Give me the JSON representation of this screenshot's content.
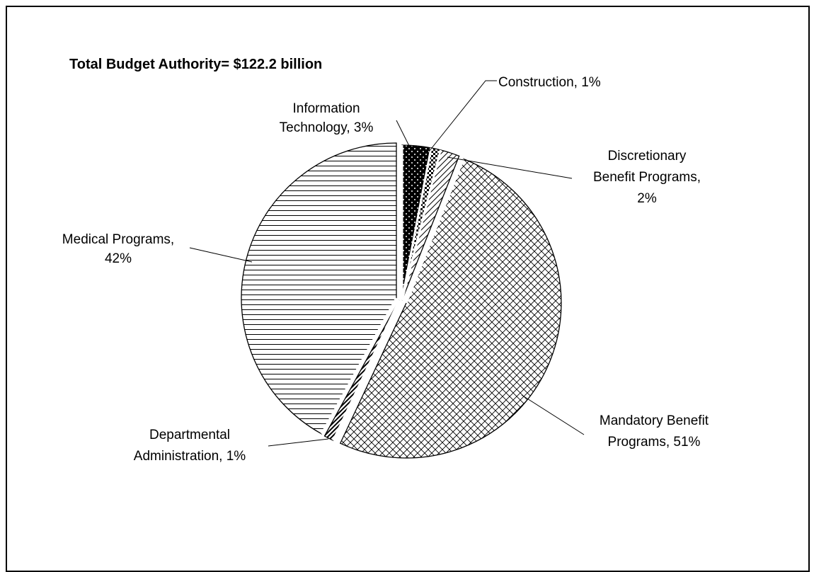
{
  "chart_data": {
    "type": "pie",
    "title": "Total Budget Authority= $122.2 billion",
    "slices": [
      {
        "name": "Information Technology",
        "value": 3,
        "label_lines": [
          "Information",
          "Technology, 3%"
        ],
        "pattern": "solid-dots"
      },
      {
        "name": "Construction",
        "value": 1,
        "label_lines": [
          "Construction, 1%"
        ],
        "pattern": "checker"
      },
      {
        "name": "Discretionary Benefit Programs",
        "value": 2,
        "label_lines": [
          "Discretionary",
          "Benefit Programs,",
          "2%"
        ],
        "pattern": "diag-hatch"
      },
      {
        "name": "Mandatory Benefit Programs",
        "value": 51,
        "label_lines": [
          "Mandatory Benefit",
          "Programs, 51%"
        ],
        "pattern": "crosshatch"
      },
      {
        "name": "Departmental Administration",
        "value": 1,
        "label_lines": [
          "Departmental",
          "Administration, 1%"
        ],
        "pattern": "bold-diag"
      },
      {
        "name": "Medical Programs",
        "value": 42,
        "label_lines": [
          "Medical Programs,",
          "42%"
        ],
        "pattern": "horizontal"
      }
    ],
    "colors": {
      "ink": "#000000",
      "paper": "#ffffff"
    }
  }
}
